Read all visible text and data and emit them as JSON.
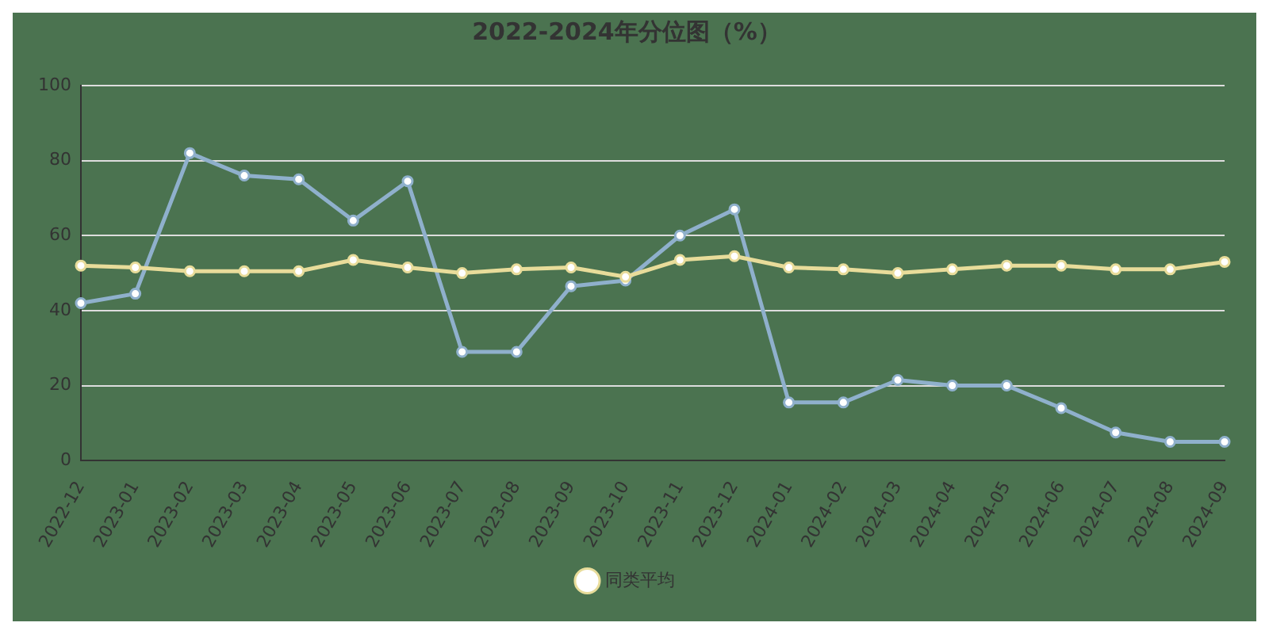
{
  "chart_data": {
    "type": "line",
    "title": "2022-2024年分位图（%）",
    "categories": [
      "2022-12",
      "2023-01",
      "2023-02",
      "2023-03",
      "2023-04",
      "2023-05",
      "2023-06",
      "2023-07",
      "2023-08",
      "2023-09",
      "2023-10",
      "2023-11",
      "2023-12",
      "2024-01",
      "2024-02",
      "2024-03",
      "2024-04",
      "2024-05",
      "2024-06",
      "2024-07",
      "2024-08",
      "2024-09"
    ],
    "series": [
      {
        "color": "#8fb0cc",
        "values": [
          42,
          44.5,
          82,
          76,
          75,
          64,
          74.5,
          29,
          29,
          46.5,
          48,
          60,
          67,
          15.5,
          15.5,
          21.5,
          20,
          20,
          14,
          7.5,
          5,
          5
        ]
      },
      {
        "name": "同类平均",
        "color": "#e8dc9a",
        "values": [
          52,
          51.5,
          50.5,
          50.5,
          50.5,
          53.5,
          51.5,
          50,
          51,
          51.5,
          49,
          53.5,
          54.5,
          51.5,
          51,
          50,
          51,
          52,
          52,
          51,
          51,
          53
        ]
      }
    ],
    "ylim": [
      0,
      100
    ],
    "yticks": [
      0,
      20,
      40,
      60,
      80,
      100
    ],
    "grid": "y",
    "legend": "bottom",
    "marker": "circle",
    "line_style": "solid"
  }
}
